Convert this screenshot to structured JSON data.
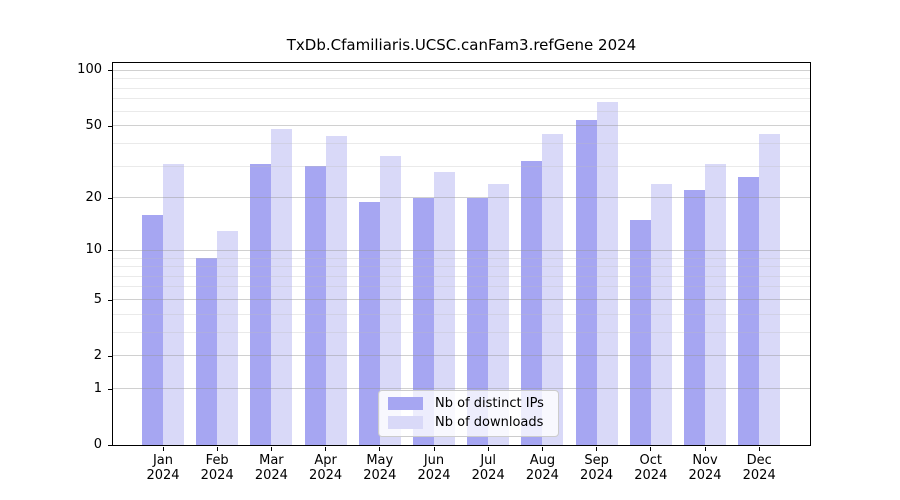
{
  "chart_data": {
    "type": "bar",
    "title": "TxDb.Cfamiliaris.UCSC.canFam3.refGene 2024",
    "categories": [
      "Jan 2024",
      "Feb 2024",
      "Mar 2024",
      "Apr 2024",
      "May 2024",
      "Jun 2024",
      "Jul 2024",
      "Aug 2024",
      "Sep 2024",
      "Oct 2024",
      "Nov 2024",
      "Dec 2024"
    ],
    "series": [
      {
        "name": "Nb of distinct IPs",
        "color": "#a6a6f2",
        "values": [
          16,
          9,
          31,
          30,
          19,
          20,
          20,
          32,
          54,
          15,
          22,
          26
        ]
      },
      {
        "name": "Nb of downloads",
        "color": "#d9d9f8",
        "values": [
          31,
          13,
          48,
          44,
          34,
          28,
          24,
          45,
          67,
          24,
          31,
          45
        ]
      }
    ],
    "xlabel": "",
    "ylabel": "",
    "yscale": "log1p",
    "ylim": [
      0,
      100
    ],
    "yticks": [
      0,
      1,
      2,
      5,
      10,
      20,
      50,
      100
    ],
    "yticks_minor": [
      3,
      4,
      6,
      7,
      8,
      9,
      30,
      40,
      60,
      70,
      80,
      90
    ],
    "grid": true,
    "legend_position": "inside-bottom-center"
  }
}
